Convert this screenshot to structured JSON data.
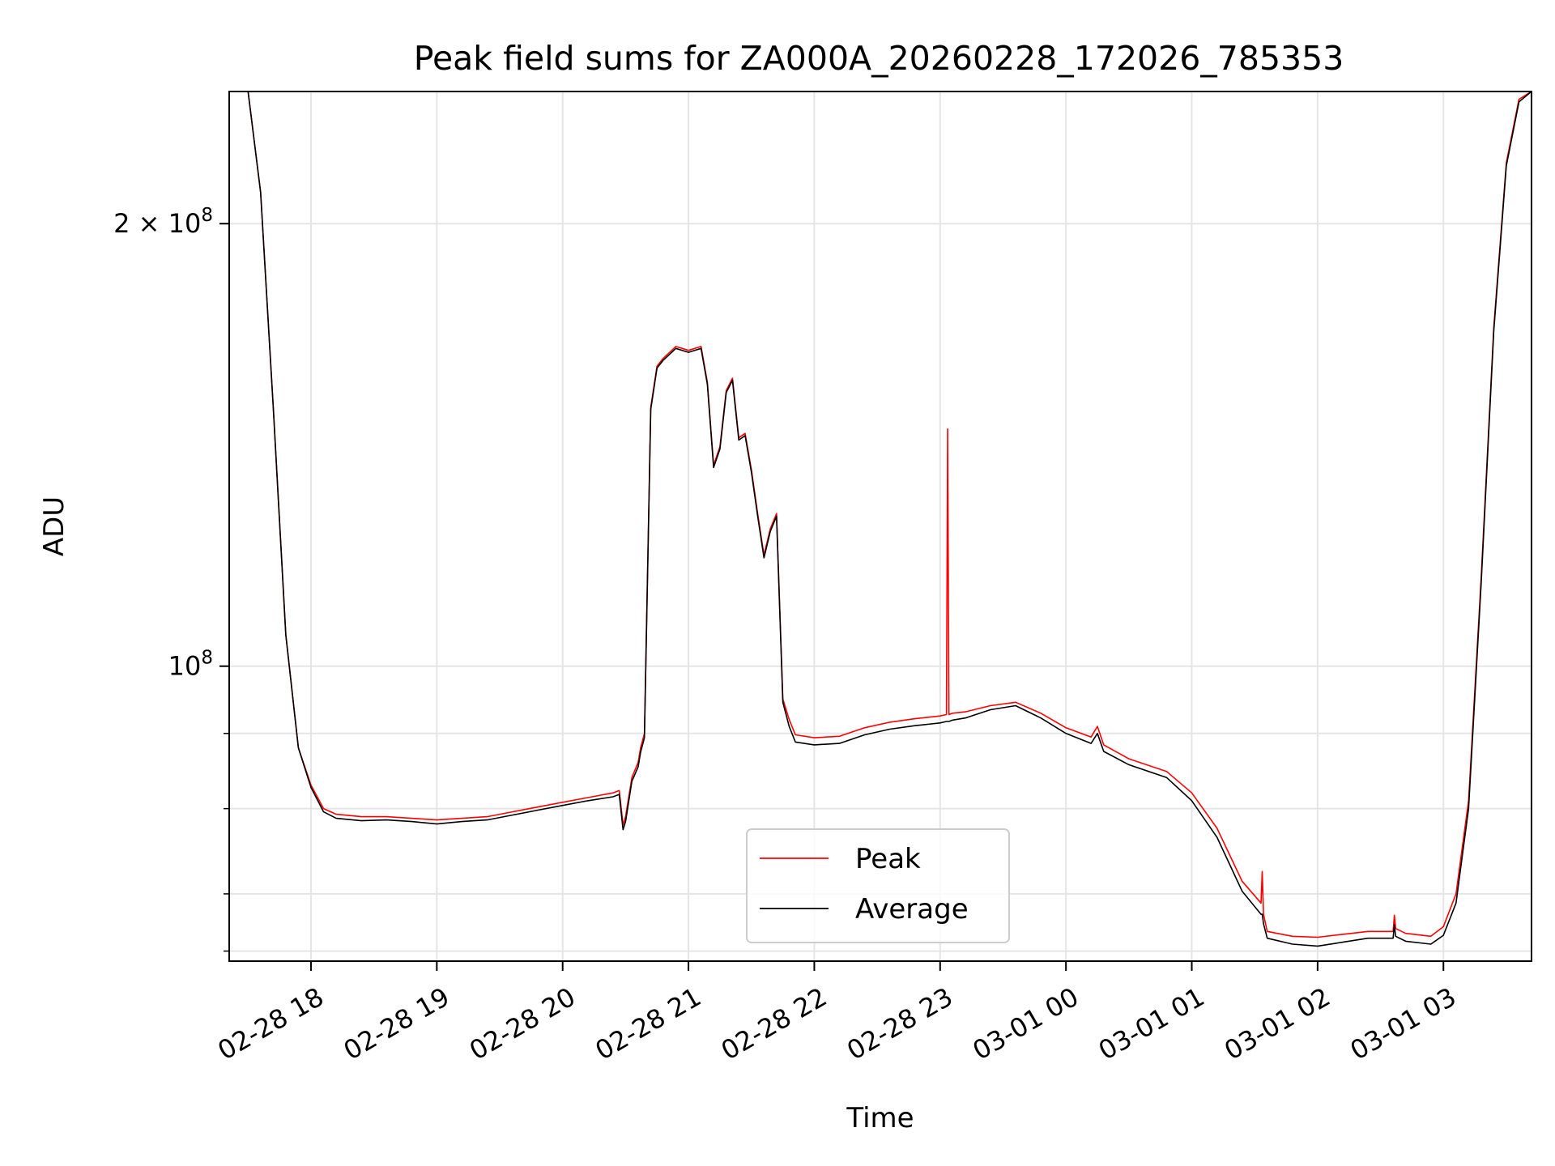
{
  "chart_data": {
    "type": "line",
    "title": "Peak field sums for ZA000A_20260228_172026_785353",
    "xlabel": "Time",
    "ylabel": "ADU",
    "yscale": "log",
    "x_unit": "hours since 02-28 00:00",
    "xlim": [
      17.35,
      27.7
    ],
    "ylim": [
      63000000,
      246000000
    ],
    "grid": true,
    "legend_position": "lower center",
    "x_ticks": [
      {
        "value": 18,
        "label": "02-28 18"
      },
      {
        "value": 19,
        "label": "02-28 19"
      },
      {
        "value": 20,
        "label": "02-28 20"
      },
      {
        "value": 21,
        "label": "02-28 21"
      },
      {
        "value": 22,
        "label": "02-28 22"
      },
      {
        "value": 23,
        "label": "02-28 23"
      },
      {
        "value": 24,
        "label": "03-01 00"
      },
      {
        "value": 25,
        "label": "03-01 01"
      },
      {
        "value": 26,
        "label": "03-01 02"
      },
      {
        "value": 27,
        "label": "03-01 03"
      }
    ],
    "y_major_ticks": [
      {
        "value": 100000000,
        "base": "10",
        "exp": "8",
        "coef": ""
      },
      {
        "value": 200000000,
        "base": "10",
        "exp": "8",
        "coef": "2 × "
      }
    ],
    "y_minor_ticks": [
      64000000,
      70000000,
      80000000,
      90000000
    ],
    "series": [
      {
        "name": "Peak",
        "color": "#ff0000",
        "x": [
          17.35,
          17.5,
          17.6,
          17.7,
          17.8,
          17.9,
          18.0,
          18.1,
          18.2,
          18.4,
          18.6,
          18.8,
          19.0,
          19.2,
          19.4,
          19.6,
          19.8,
          20.0,
          20.2,
          20.4,
          20.45,
          20.48,
          20.5,
          20.55,
          20.6,
          20.62,
          20.65,
          20.7,
          20.75,
          20.8,
          20.9,
          21.0,
          21.1,
          21.15,
          21.2,
          21.25,
          21.3,
          21.35,
          21.4,
          21.45,
          21.5,
          21.55,
          21.6,
          21.65,
          21.7,
          21.75,
          21.8,
          21.85,
          22.0,
          22.2,
          22.4,
          22.6,
          22.8,
          23.0,
          23.05,
          23.06,
          23.07,
          23.1,
          23.2,
          23.4,
          23.6,
          23.8,
          24.0,
          24.2,
          24.25,
          24.3,
          24.5,
          24.8,
          25.0,
          25.2,
          25.4,
          25.55,
          25.56,
          25.57,
          25.6,
          25.8,
          26.0,
          26.2,
          26.4,
          26.6,
          26.61,
          26.62,
          26.7,
          26.9,
          27.0,
          27.1,
          27.2,
          27.3,
          27.4,
          27.5,
          27.6,
          27.7
        ],
        "values": [
          246000000,
          246000000,
          210000000,
          150000000,
          105000000,
          88000000,
          83000000,
          80000000,
          79300000,
          79000000,
          79000000,
          78800000,
          78600000,
          78800000,
          79000000,
          79600000,
          80200000,
          80800000,
          81400000,
          82000000,
          82300000,
          78000000,
          79000000,
          84000000,
          86000000,
          88000000,
          90000000,
          150000000,
          160000000,
          162000000,
          165000000,
          164000000,
          165000000,
          156000000,
          137000000,
          141000000,
          154000000,
          157000000,
          143000000,
          144000000,
          136000000,
          127000000,
          119000000,
          124000000,
          127000000,
          95000000,
          92000000,
          89800000,
          89400000,
          89600000,
          90800000,
          91600000,
          92100000,
          92500000,
          92700000,
          145000000,
          92700000,
          92900000,
          93100000,
          94000000,
          94500000,
          92900000,
          90800000,
          89500000,
          91000000,
          88400000,
          86500000,
          84800000,
          82000000,
          77600000,
          71400000,
          69000000,
          72500000,
          67800000,
          66000000,
          65500000,
          65400000,
          65700000,
          66000000,
          66000000,
          67700000,
          66300000,
          65800000,
          65500000,
          66500000,
          70000000,
          81000000,
          115000000,
          170000000,
          220000000,
          243000000,
          246000000
        ]
      },
      {
        "name": "Average",
        "color": "#000000",
        "x": [
          17.35,
          17.5,
          17.6,
          17.7,
          17.8,
          17.9,
          18.0,
          18.1,
          18.2,
          18.4,
          18.6,
          18.8,
          19.0,
          19.2,
          19.4,
          19.6,
          19.8,
          20.0,
          20.2,
          20.4,
          20.45,
          20.48,
          20.5,
          20.55,
          20.6,
          20.62,
          20.65,
          20.7,
          20.75,
          20.8,
          20.9,
          21.0,
          21.1,
          21.15,
          21.2,
          21.25,
          21.3,
          21.35,
          21.4,
          21.45,
          21.5,
          21.55,
          21.6,
          21.65,
          21.7,
          21.75,
          21.8,
          21.85,
          22.0,
          22.2,
          22.4,
          22.6,
          22.8,
          23.0,
          23.05,
          23.06,
          23.07,
          23.1,
          23.2,
          23.4,
          23.6,
          23.8,
          24.0,
          24.2,
          24.25,
          24.3,
          24.5,
          24.8,
          25.0,
          25.2,
          25.4,
          25.55,
          25.56,
          25.57,
          25.6,
          25.8,
          26.0,
          26.2,
          26.4,
          26.6,
          26.61,
          26.62,
          26.7,
          26.9,
          27.0,
          27.1,
          27.2,
          27.3,
          27.4,
          27.5,
          27.6,
          27.7
        ],
        "values": [
          246000000,
          246000000,
          210000000,
          150000000,
          105000000,
          88000000,
          82700000,
          79600000,
          78800000,
          78500000,
          78600000,
          78400000,
          78100000,
          78400000,
          78600000,
          79200000,
          79800000,
          80400000,
          81000000,
          81500000,
          81800000,
          77400000,
          78400000,
          83500000,
          85400000,
          87400000,
          89400000,
          149500000,
          159500000,
          161500000,
          164500000,
          163500000,
          164500000,
          155500000,
          136500000,
          140500000,
          153500000,
          156500000,
          142500000,
          143500000,
          135500000,
          126500000,
          118500000,
          123500000,
          126500000,
          94500000,
          91000000,
          88800000,
          88400000,
          88600000,
          89800000,
          90600000,
          91100000,
          91500000,
          91700000,
          91700000,
          91700000,
          91900000,
          92200000,
          93400000,
          94000000,
          92200000,
          90000000,
          88600000,
          90000000,
          87500000,
          85700000,
          84000000,
          81000000,
          76500000,
          70300000,
          67800000,
          67800000,
          66800000,
          65300000,
          64700000,
          64500000,
          64900000,
          65300000,
          65300000,
          66700000,
          65500000,
          65000000,
          64700000,
          65600000,
          69000000,
          80000000,
          114000000,
          169000000,
          219000000,
          242000000,
          246000000
        ]
      }
    ]
  }
}
